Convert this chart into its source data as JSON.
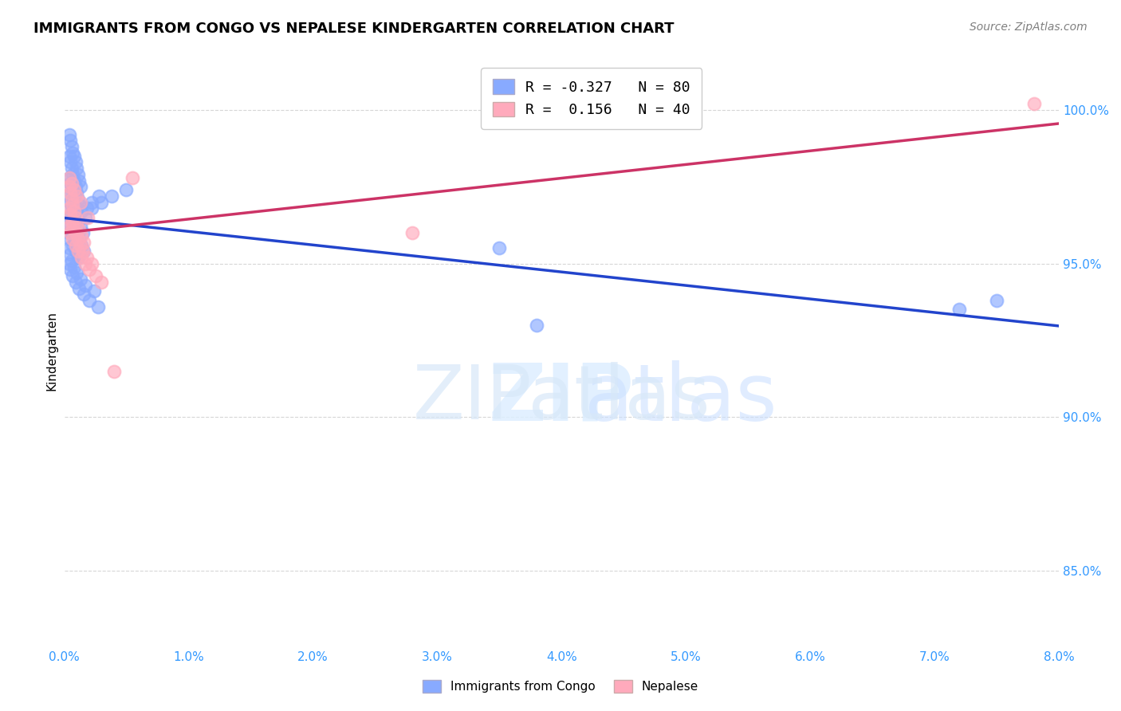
{
  "title": "IMMIGRANTS FROM CONGO VS NEPALESE KINDERGARTEN CORRELATION CHART",
  "source": "Source: ZipAtlas.com",
  "ylabel": "Kindergarten",
  "xlim": [
    0.0,
    8.0
  ],
  "ylim": [
    82.5,
    101.8
  ],
  "yticks": [
    85.0,
    90.0,
    95.0,
    100.0
  ],
  "xticks": [
    0.0,
    1.0,
    2.0,
    3.0,
    4.0,
    5.0,
    6.0,
    7.0,
    8.0
  ],
  "legend_blue_r": "-0.327",
  "legend_blue_n": "80",
  "legend_pink_r": "0.156",
  "legend_pink_n": "40",
  "legend_label_blue": "Immigrants from Congo",
  "legend_label_pink": "Nepalese",
  "color_blue": "#88AAFF",
  "color_pink": "#FFAABC",
  "line_blue": "#2244CC",
  "line_pink": "#CC3366",
  "watermark_zip": "ZIP",
  "watermark_atlas": "atlas",
  "background_color": "#FFFFFF",
  "blue_scatter_x": [
    0.04,
    0.05,
    0.06,
    0.07,
    0.08,
    0.09,
    0.1,
    0.11,
    0.12,
    0.13,
    0.04,
    0.05,
    0.06,
    0.07,
    0.08,
    0.09,
    0.1,
    0.11,
    0.12,
    0.14,
    0.04,
    0.05,
    0.06,
    0.07,
    0.08,
    0.09,
    0.1,
    0.11,
    0.13,
    0.15,
    0.04,
    0.05,
    0.06,
    0.07,
    0.08,
    0.09,
    0.11,
    0.12,
    0.14,
    0.16,
    0.04,
    0.05,
    0.06,
    0.08,
    0.09,
    0.1,
    0.12,
    0.18,
    0.22,
    0.28,
    0.04,
    0.05,
    0.07,
    0.09,
    0.11,
    0.17,
    0.22,
    0.3,
    0.38,
    0.5,
    0.04,
    0.05,
    0.06,
    0.08,
    0.1,
    0.13,
    0.17,
    0.24,
    3.5,
    3.8,
    0.04,
    0.05,
    0.07,
    0.09,
    0.12,
    0.16,
    0.2,
    0.27,
    7.2,
    7.5
  ],
  "blue_scatter_y": [
    99.2,
    99.0,
    98.8,
    98.6,
    98.5,
    98.3,
    98.1,
    97.9,
    97.7,
    97.5,
    98.5,
    98.3,
    98.1,
    97.9,
    97.7,
    97.5,
    97.3,
    97.1,
    96.9,
    96.7,
    97.8,
    97.6,
    97.4,
    97.2,
    97.0,
    96.8,
    96.6,
    96.4,
    96.2,
    96.0,
    97.2,
    97.0,
    96.8,
    96.6,
    96.4,
    96.2,
    96.0,
    95.8,
    95.6,
    95.4,
    96.5,
    96.3,
    96.1,
    95.9,
    95.7,
    95.5,
    95.3,
    96.8,
    97.0,
    97.2,
    96.0,
    95.8,
    95.6,
    95.4,
    95.2,
    96.5,
    96.8,
    97.0,
    97.2,
    97.4,
    95.5,
    95.3,
    95.1,
    94.9,
    94.7,
    94.5,
    94.3,
    94.1,
    95.5,
    93.0,
    95.0,
    94.8,
    94.6,
    94.4,
    94.2,
    94.0,
    93.8,
    93.6,
    93.5,
    93.8
  ],
  "pink_scatter_x": [
    0.04,
    0.05,
    0.06,
    0.07,
    0.08,
    0.09,
    0.1,
    0.12,
    0.14,
    0.16,
    0.04,
    0.05,
    0.06,
    0.07,
    0.09,
    0.11,
    0.13,
    0.15,
    0.18,
    0.22,
    0.04,
    0.05,
    0.07,
    0.09,
    0.11,
    0.14,
    0.17,
    0.2,
    0.25,
    0.3,
    0.04,
    0.06,
    0.08,
    0.1,
    0.4,
    0.55,
    2.8,
    0.13,
    0.19,
    7.8
  ],
  "pink_scatter_y": [
    97.5,
    97.3,
    97.1,
    96.9,
    96.7,
    96.5,
    96.3,
    96.1,
    95.9,
    95.7,
    96.8,
    96.6,
    96.4,
    96.2,
    96.0,
    95.8,
    95.6,
    95.4,
    95.2,
    95.0,
    96.2,
    96.0,
    95.8,
    95.6,
    95.4,
    95.2,
    95.0,
    94.8,
    94.6,
    94.4,
    97.8,
    97.6,
    97.4,
    97.2,
    91.5,
    97.8,
    96.0,
    97.0,
    96.5,
    100.2
  ]
}
